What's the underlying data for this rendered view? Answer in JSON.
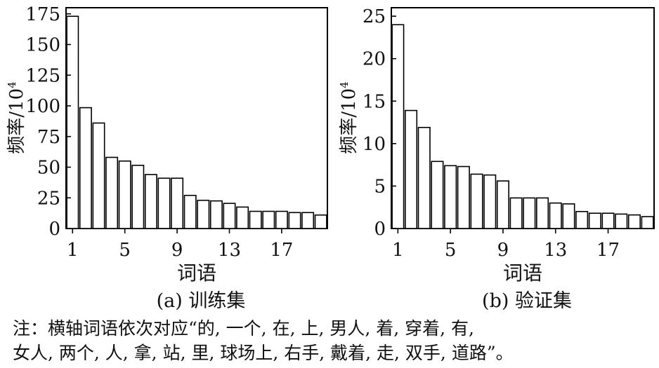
{
  "charts": [
    {
      "caption": "(a) 训练集",
      "chart_data": {
        "type": "bar",
        "title": "",
        "xlabel": "词语",
        "ylabel": "频率/10",
        "ylabel_sup": "4",
        "x": [
          1,
          2,
          3,
          4,
          5,
          6,
          7,
          8,
          9,
          10,
          11,
          12,
          13,
          14,
          15,
          16,
          17,
          18,
          19,
          20
        ],
        "values": [
          173,
          98.5,
          86,
          58,
          55,
          51.5,
          44,
          41,
          41,
          27,
          23,
          22.5,
          20.5,
          17.5,
          14,
          14,
          14,
          13,
          13,
          11
        ],
        "ylim": [
          0,
          180
        ],
        "yticks": [
          0,
          25,
          50,
          75,
          100,
          125,
          150,
          175
        ],
        "xticks": [
          1,
          5,
          9,
          13,
          17
        ],
        "grid": false
      }
    },
    {
      "caption": "(b) 验证集",
      "chart_data": {
        "type": "bar",
        "title": "",
        "xlabel": "词语",
        "ylabel": "频率/10",
        "ylabel_sup": "4",
        "x": [
          1,
          2,
          3,
          4,
          5,
          6,
          7,
          8,
          9,
          10,
          11,
          12,
          13,
          14,
          15,
          16,
          17,
          18,
          19,
          20
        ],
        "values": [
          24,
          13.9,
          11.9,
          7.9,
          7.4,
          7.3,
          6.4,
          6.3,
          5.6,
          3.6,
          3.6,
          3.6,
          3.0,
          2.9,
          2.0,
          1.8,
          1.8,
          1.7,
          1.6,
          1.4
        ],
        "ylim": [
          0,
          26
        ],
        "yticks": [
          0,
          5,
          10,
          15,
          20,
          25
        ],
        "xticks": [
          1,
          5,
          9,
          13,
          17
        ],
        "grid": false
      }
    }
  ],
  "note": {
    "line1": "注：横轴词语依次对应“的, 一个, 在, 上, 男人, 着, 穿着, 有,",
    "line2": "女人, 两个, 人, 拿, 站, 里, 球场上, 右手, 戴着, 走, 双手, 道路”。"
  }
}
